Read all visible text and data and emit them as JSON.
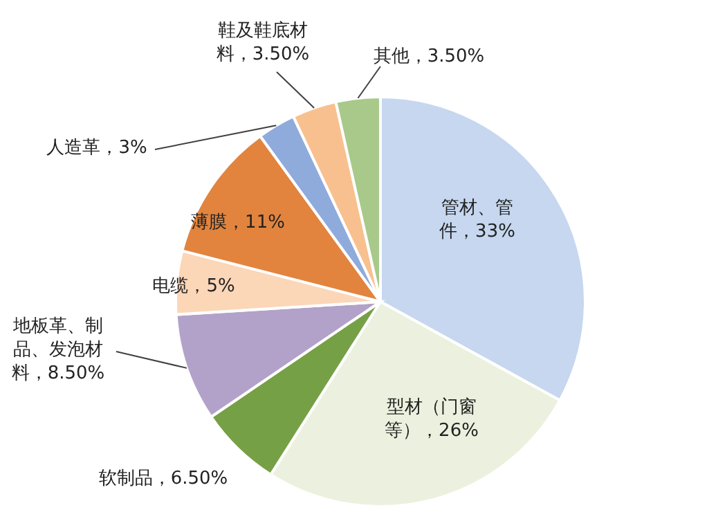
{
  "chart_data": {
    "type": "pie",
    "categories": [
      "管材、管件",
      "型材（门窗等）",
      "软制品",
      "地板革、制品、发泡材料",
      "电缆",
      "薄膜",
      "人造革",
      "鞋及鞋底材料",
      "其他"
    ],
    "values": [
      33,
      26,
      6.5,
      8.5,
      5,
      11,
      3,
      3.5,
      3.5
    ],
    "value_labels": [
      "33%",
      "26%",
      "6.50%",
      "8.50%",
      "5%",
      "11%",
      "3%",
      "3.50%",
      "3.50%"
    ],
    "colors": [
      "#c6d7ef",
      "#ebf1de",
      "#76a045",
      "#b2a2c9",
      "#fbd6b7",
      "#e2843e",
      "#8fabdc",
      "#f8c08f",
      "#a8c98a"
    ]
  }
}
